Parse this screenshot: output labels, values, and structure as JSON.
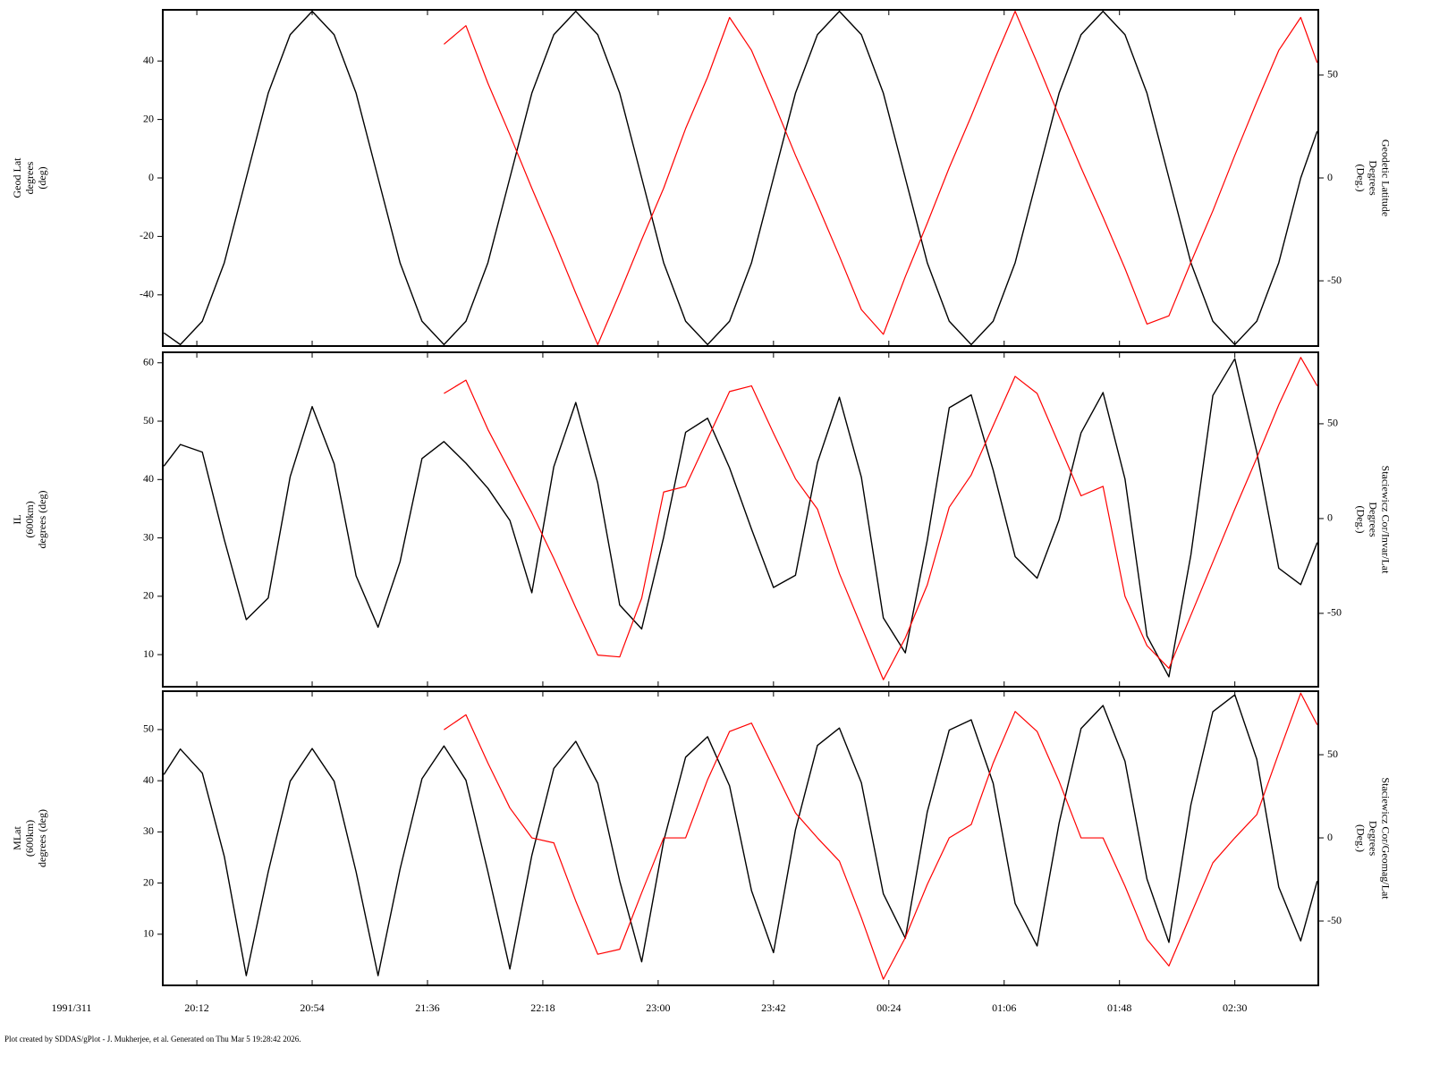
{
  "chart_data": [
    {
      "type": "line",
      "ylabel": [
        "Geod Lat",
        "degrees",
        "(deg)"
      ],
      "y2label": [
        "Geodetic Latitude",
        "Degrees",
        "(Deg.)"
      ],
      "xlim": [
        1199.6,
        1620.4
      ],
      "ylim": [
        -57.5,
        57.5
      ],
      "yticks": [
        -40,
        -20,
        0,
        20,
        40
      ],
      "y2lim": [
        -81.7,
        81.7
      ],
      "y2ticks": [
        -50,
        0,
        50
      ],
      "x": [
        1200,
        1206,
        1214,
        1222,
        1230,
        1238,
        1246,
        1254,
        1262,
        1270,
        1278,
        1286,
        1294,
        1302,
        1310,
        1318,
        1326,
        1334,
        1342,
        1350,
        1358,
        1366,
        1374,
        1382,
        1390,
        1398,
        1406,
        1414,
        1422,
        1430,
        1438,
        1446,
        1454,
        1462,
        1470,
        1478,
        1486,
        1494,
        1502,
        1510,
        1518,
        1526,
        1534,
        1542,
        1550,
        1558,
        1566,
        1574,
        1582,
        1590,
        1598,
        1606,
        1614,
        1620
      ],
      "series": [
        {
          "color": "#000000",
          "values": [
            -53,
            -57,
            -49,
            -29,
            0,
            29,
            49,
            57,
            49,
            29,
            0,
            -29,
            -49,
            -57,
            -49,
            -29,
            0,
            29,
            49,
            57,
            49,
            29,
            0,
            -29,
            -49,
            -57,
            -49,
            -29,
            0,
            29,
            49,
            57,
            49,
            29,
            0,
            -29,
            -49,
            -57,
            -49,
            -29,
            0,
            29,
            49,
            57,
            49,
            29,
            0,
            -29,
            -49,
            -57,
            -49,
            -29,
            0,
            16
          ]
        },
        {
          "color": "#ff0000",
          "axis": "y2",
          "values": [
            null,
            null,
            null,
            null,
            null,
            null,
            null,
            null,
            null,
            null,
            null,
            null,
            null,
            65,
            74,
            46,
            21,
            -5,
            -30,
            -56,
            -81,
            -56,
            -30,
            -5,
            24,
            49,
            78,
            62,
            37,
            11,
            -13,
            -38,
            -64,
            -76,
            -48,
            -22,
            5,
            30,
            56,
            81,
            56,
            30,
            5,
            -19,
            -44,
            -71,
            -67,
            -41,
            -16,
            11,
            37,
            62,
            78,
            56
          ]
        }
      ]
    },
    {
      "type": "line",
      "ylabel": [
        "IL",
        "(600km)",
        "degrees (deg)"
      ],
      "y2label": [
        "Staciewicz Cor/Invar/Lat",
        "Degrees",
        "(Deg.)"
      ],
      "xlim": [
        1199.6,
        1620.4
      ],
      "ylim": [
        4.5,
        61.8
      ],
      "yticks": [
        10,
        20,
        30,
        40,
        50,
        60
      ],
      "y2lim": [
        -88.7,
        87.7
      ],
      "y2ticks": [
        -50,
        0,
        50
      ],
      "x": [
        1200,
        1206,
        1214,
        1222,
        1230,
        1238,
        1246,
        1254,
        1262,
        1270,
        1278,
        1286,
        1294,
        1302,
        1310,
        1318,
        1326,
        1334,
        1342,
        1350,
        1358,
        1366,
        1374,
        1382,
        1390,
        1398,
        1406,
        1414,
        1422,
        1430,
        1438,
        1446,
        1454,
        1462,
        1470,
        1478,
        1486,
        1494,
        1502,
        1510,
        1518,
        1526,
        1534,
        1542,
        1550,
        1558,
        1566,
        1574,
        1582,
        1590,
        1598,
        1606,
        1614,
        1620
      ],
      "series": [
        {
          "color": "#000000",
          "values": [
            42.3,
            46,
            44.7,
            29.7,
            16,
            19.7,
            40.5,
            52.5,
            42.7,
            23.5,
            14.7,
            25.9,
            43.6,
            46.5,
            42.8,
            38.5,
            33,
            20.6,
            42.2,
            53.2,
            39.4,
            18.5,
            14.4,
            30.1,
            48.1,
            50.5,
            42,
            31.5,
            21.5,
            23.6,
            42.9,
            54.1,
            40.4,
            16.3,
            10.3,
            29.6,
            52.3,
            54.5,
            41.6,
            26.8,
            23.1,
            33.1,
            48,
            54.9,
            40.1,
            13.2,
            6.2,
            27.1,
            54.4,
            60.7,
            44.7,
            24.8,
            22,
            29.2
          ]
        },
        {
          "color": "#ff0000",
          "axis": "y2",
          "values": [
            null,
            null,
            null,
            null,
            null,
            null,
            null,
            null,
            null,
            null,
            null,
            null,
            null,
            66,
            73,
            47,
            25,
            3,
            -21,
            -47,
            -72,
            -73,
            -42,
            14,
            17,
            42,
            67,
            70,
            45,
            21,
            5,
            -29,
            -57,
            -85,
            -63,
            -35,
            6,
            23,
            49,
            75,
            66,
            39,
            12,
            17,
            -41,
            -67,
            -79,
            -51,
            -23,
            5,
            32,
            60,
            85,
            70
          ]
        }
      ]
    },
    {
      "type": "line",
      "ylabel": [
        "MLat",
        "(600km)",
        "degrees (deg)"
      ],
      "y2label": [
        "Staciewicz Cor/Geomag/Lat",
        "Degrees",
        "(Deg.)"
      ],
      "xlabel": "1991/311",
      "xlim": [
        1199.6,
        1620.4
      ],
      "xticks": [
        {
          "value": 1212,
          "label": "20:12"
        },
        {
          "value": 1254,
          "label": "20:54"
        },
        {
          "value": 1296,
          "label": "21:36"
        },
        {
          "value": 1338,
          "label": "22:18"
        },
        {
          "value": 1380,
          "label": "23:00"
        },
        {
          "value": 1422,
          "label": "23:42"
        },
        {
          "value": 1464,
          "label": "00:24"
        },
        {
          "value": 1506,
          "label": "01:06"
        },
        {
          "value": 1548,
          "label": "01:48"
        },
        {
          "value": 1590,
          "label": "02:30"
        }
      ],
      "ylim": [
        0,
        57.5
      ],
      "yticks": [
        10,
        20,
        30,
        40,
        50
      ],
      "y2lim": [
        -88.7,
        88.2
      ],
      "y2ticks": [
        -50,
        0,
        50
      ],
      "x": [
        1200,
        1206,
        1214,
        1222,
        1230,
        1238,
        1246,
        1254,
        1262,
        1270,
        1278,
        1286,
        1294,
        1302,
        1310,
        1318,
        1326,
        1334,
        1342,
        1350,
        1358,
        1366,
        1374,
        1382,
        1390,
        1398,
        1406,
        1414,
        1422,
        1430,
        1438,
        1446,
        1454,
        1462,
        1470,
        1478,
        1486,
        1494,
        1502,
        1510,
        1518,
        1526,
        1534,
        1542,
        1550,
        1558,
        1566,
        1574,
        1582,
        1590,
        1598,
        1606,
        1614,
        1620
      ],
      "series": [
        {
          "color": "#000000",
          "values": [
            41.2,
            46.2,
            41.5,
            25.2,
            1.9,
            22.2,
            39.9,
            46.3,
            39.9,
            22.2,
            1.9,
            22.7,
            40.4,
            46.8,
            40.1,
            22.2,
            3.2,
            25.4,
            42.4,
            47.7,
            39.5,
            20.4,
            4.6,
            28.2,
            44.6,
            48.6,
            39,
            18.5,
            6.4,
            30.4,
            46.9,
            50.3,
            39.6,
            17.9,
            9.2,
            33.9,
            49.9,
            51.9,
            39.5,
            16,
            7.7,
            31.7,
            50.2,
            54.7,
            43.8,
            20.8,
            8.4,
            35.3,
            53.5,
            56.8,
            44.2,
            19.2,
            8.7,
            20.4
          ]
        },
        {
          "color": "#ff0000",
          "axis": "y2",
          "values": [
            null,
            null,
            null,
            null,
            null,
            null,
            null,
            null,
            null,
            null,
            null,
            null,
            null,
            65,
            74,
            45,
            18,
            0,
            -3,
            -38,
            -70,
            -67,
            -33,
            0,
            0,
            35,
            64,
            69,
            42,
            15,
            0,
            -14,
            -48,
            -85,
            -60,
            -28,
            0,
            8,
            45,
            76,
            64,
            34,
            0,
            0,
            -29,
            -61,
            -77,
            -46,
            -15,
            0,
            14,
            51,
            87,
            68
          ]
        }
      ]
    }
  ],
  "footer": "Plot created by SDDAS/gPlot - J. Mukherjee, et al.  Generated on Thu Mar 5 19:28:42 2026."
}
